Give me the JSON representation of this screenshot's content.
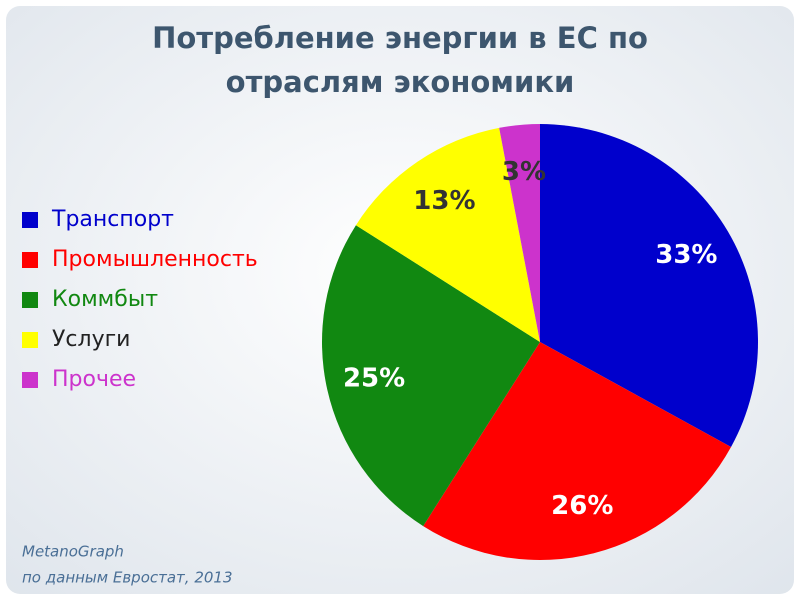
{
  "chart_data": {
    "type": "pie",
    "title": [
      "Потребление энергии в ЕС по",
      "отраслям экономики"
    ],
    "categories": [
      "Транспорт",
      "Промышленность",
      "Коммбыт",
      "Услуги",
      "Прочее"
    ],
    "values": [
      33,
      26,
      25,
      13,
      3
    ],
    "value_labels": [
      "33%",
      "26%",
      "25%",
      "13%",
      "3%"
    ],
    "colors": [
      "#0000cc",
      "#ff0000",
      "#118811",
      "#ffff00",
      "#cc33cc"
    ],
    "value_label_colors": [
      "#ffffff",
      "#ffffff",
      "#ffffff",
      "#333333",
      "#333333"
    ],
    "legend": "left",
    "source": [
      "MetanoGraph",
      "по данным Евростат, 2013"
    ]
  }
}
